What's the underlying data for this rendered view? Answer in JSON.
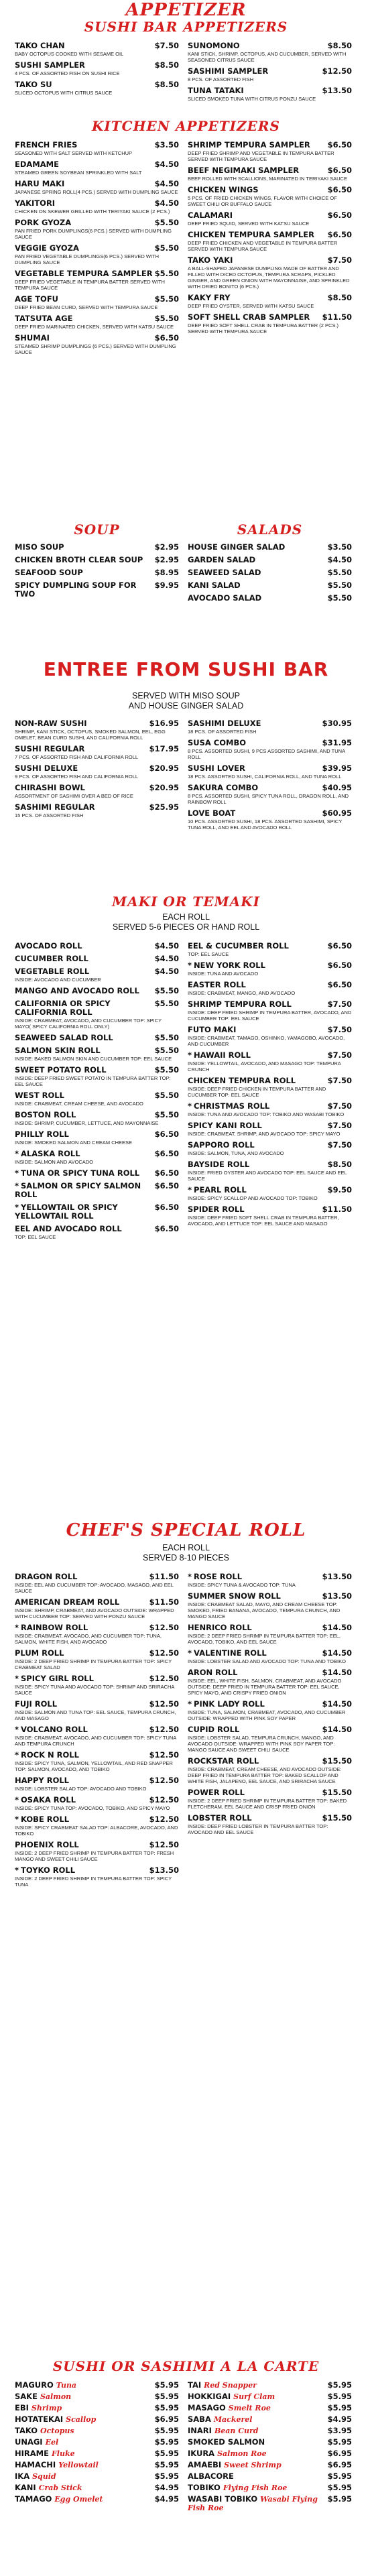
{
  "appetizer_header": "Appetizer",
  "sushi_bar_appetizers": {
    "title": "SUSHI BAR APPETIZERS",
    "left": [
      {
        "name": "TAKO CHAN",
        "price": "$7.50",
        "desc": "BABY OCTOPUS COOKED WITH SESAME OIL"
      },
      {
        "name": "SUSHI SAMPLER",
        "price": "$8.50",
        "desc": "4 PCS. OF ASSORTED FISH ON SUSHI RICE"
      },
      {
        "name": "TAKO SU",
        "price": "$8.50",
        "desc": "SLICED OCTOPUS WITH CITRUS SAUCE"
      }
    ],
    "right": [
      {
        "name": "SUNOMONO",
        "price": "$8.50",
        "desc": "KANI STICK, SHRIMP, OCTOPUS, AND CUCUMBER, SERVED WITH SEASONED CITRUS SAUCE"
      },
      {
        "name": "SASHIMI SAMPLER",
        "price": "$12.50",
        "desc": "8 PCS. OF ASSORTED FISH"
      },
      {
        "name": "TUNA TATAKI",
        "price": "$13.50",
        "desc": "SLICED SMOKED TUNA WITH CITRUS PONZU SAUCE"
      }
    ]
  },
  "kitchen_appetizers": {
    "title": "KITCHEN APPETIZERS",
    "left": [
      {
        "name": "FRENCH FRIES",
        "price": "$3.50",
        "desc": "SEASONED WITH SALT SERVED WITH KETCHUP"
      },
      {
        "name": "EDAMAME",
        "price": "$4.50",
        "desc": "STEAMED GREEN SOYBEAN SPRINKLED WITH SALT"
      },
      {
        "name": "HARU MAKI",
        "price": "$4.50",
        "desc": "JAPANESE SPRING ROLL(4 PCS.) SERVED WITH DUMPLING SAUCE"
      },
      {
        "name": "YAKITORI",
        "price": "$4.50",
        "desc": "CHICKEN ON SKEWER GRILLED WITH TERIYAKI SAUCE (2 PCS.)"
      },
      {
        "name": "PORK GYOZA",
        "price": "$5.50",
        "desc": "PAN FRIED PORK DUMPLINGS(6 PCS.) SERVED WITH DUMPLING SAUCE"
      },
      {
        "name": "VEGGIE GYOZA",
        "price": "$5.50",
        "desc": "PAN FRIED VEGETABLE DUMPLINGS(6 PCS.) SERVED WITH DUMPLING SAUCE"
      },
      {
        "name": "VEGETABLE TEMPURA SAMPLER",
        "price": "$5.50",
        "desc": "DEEP FRIED VEGETABLE IN TEMPURA BATTER SERVED WITH TEMPURA SAUCE"
      },
      {
        "name": "AGE TOFU",
        "price": "$5.50",
        "desc": "DEEP FRIED BEAN CURD, SERVED WITH TEMPURA SAUCE"
      },
      {
        "name": "TATSUTA AGE",
        "price": "$5.50",
        "desc": "DEEP FRIED MARINATED CHICKEN, SERVED WITH KATSU SAUCE"
      },
      {
        "name": "SHUMAI",
        "price": "$6.50",
        "desc": "STEAMED SHRIMP DUMPLINGS (6 PCS.) SERVED WITH DUMPLING SAUCE"
      }
    ],
    "right": [
      {
        "name": "SHRIMP TEMPURA SAMPLER",
        "price": "$6.50",
        "desc": "DEEP FRIED SHRIMP AND VEGETABLE IN TEMPURA BATTER SERVED WITH TEMPURA SAUCE"
      },
      {
        "name": "BEEF NEGIMAKI SAMPLER",
        "price": "$6.50",
        "desc": "BEEF ROLLED WITH SCALLIONS, MARINATED IN TERIYAKI SAUCE"
      },
      {
        "name": "CHICKEN WINGS",
        "price": "$6.50",
        "desc": "5 PCS. OF FRIED CHICKEN WINGS, FLAVOR WITH CHOICE OF SWEET CHILI OR BUFFALO SAUCE"
      },
      {
        "name": "CALAMARI",
        "price": "$6.50",
        "desc": "DEEP FRIED SQUID, SERVED WITH KATSU SAUCE"
      },
      {
        "name": "CHICKEN TEMPURA SAMPLER",
        "price": "$6.50",
        "desc": "DEEP FRIED CHICKEN AND VEGETABLE IN TEMPURA BATTER SERVED WITH TEMPURA SAUCE"
      },
      {
        "name": "TAKO YAKI",
        "price": "$7.50",
        "desc": "A BALL-SHAPED JAPANESE DUMPLING MADE OF BATTER AND FILLED WITH DICED OCTOPUS, TEMPURA SCRAPS, PICKLED GINGER, AND GREEN ONION WITH MAYONNAISE, AND SPRINKLED WITH DRIED BONITO (6 PCS.)"
      },
      {
        "name": "KAKY FRY",
        "price": "$8.50",
        "desc": "DEEP FRIED OYSTER, SERVED WITH KATSU SAUCE"
      },
      {
        "name": "SOFT SHELL CRAB SAMPLER",
        "price": "$11.50",
        "desc": "DEEP FRIED SOFT SHELL CRAB IN TEMPURA BATTER (2 PCS.) SERVED WITH TEMPURA SAUCE"
      }
    ]
  },
  "soup": {
    "title": "Soup",
    "items": [
      {
        "name": "MISO SOUP",
        "price": "$2.95"
      },
      {
        "name": "CHICKEN BROTH CLEAR SOUP",
        "price": "$2.95"
      },
      {
        "name": "SEAFOOD SOUP",
        "price": "$8.95"
      },
      {
        "name": "SPICY DUMPLING SOUP FOR TWO",
        "price": "$9.95"
      }
    ]
  },
  "salads": {
    "title": "Salads",
    "items": [
      {
        "name": "HOUSE GINGER SALAD",
        "price": "$3.50"
      },
      {
        "name": "GARDEN SALAD",
        "price": "$4.50"
      },
      {
        "name": "SEAWEED SALAD",
        "price": "$5.50"
      },
      {
        "name": "KANI SALAD",
        "price": "$5.50"
      },
      {
        "name": "AVOCADO SALAD",
        "price": "$5.50"
      }
    ]
  },
  "entree": {
    "title": "ENTREE FROM SUSHI BAR",
    "note1": "SERVED WITH MISO SOUP",
    "note2": "AND HOUSE GINGER SALAD",
    "left": [
      {
        "name": "NON-RAW SUSHI",
        "price": "$16.95",
        "desc": "SHRIMP, KANI STICK, OCTOPUS, SMOKED SALMON, EEL, EGG OMELET, BEAN CURD SUSHI, AND CALIFORNIA ROLL"
      },
      {
        "name": "SUSHI REGULAR",
        "price": "$17.95",
        "desc": "7 PCS. OF ASSORTED FISH AND CALIFORNIA ROLL"
      },
      {
        "name": "SUSHI DELUXE",
        "price": "$20.95",
        "desc": "9 PCS. OF ASSORTED FISH AND CALIFORNIA ROLL"
      },
      {
        "name": "CHIRASHI BOWL",
        "price": "$20.95",
        "desc": "ASSORTMENT OF SASHIMI OVER A BED OF RICE"
      },
      {
        "name": "SASHIMI REGULAR",
        "price": "$25.95",
        "desc": "15 PCS. OF ASSORTED FISH"
      }
    ],
    "right": [
      {
        "name": "SASHIMI DELUXE",
        "price": "$30.95",
        "desc": "18 PCS. OF ASSORTED FISH"
      },
      {
        "name": "SUSA COMBO",
        "price": "$31.95",
        "desc": "8 PCS. ASSORTED SUSHI, 9 PCS ASSORTED SASHIMI, AND TUNA ROLL"
      },
      {
        "name": "SUSHI LOVER",
        "price": "$39.95",
        "desc": "18 PCS. ASSORTED SUSHI, CALIFORNIA ROLL, AND TUNA ROLL"
      },
      {
        "name": "SAKURA COMBO",
        "price": "$40.95",
        "desc": "8 PCS. ASSORTED SUSHI, SPICY TUNA ROLL, DRAGON ROLL, AND RAINBOW ROLL"
      },
      {
        "name": "LOVE BOAT",
        "price": "$60.95",
        "desc": "10 PCS. ASSORTED SUSHI, 18 PCS. ASSORTED SASHIMI, SPICY TUNA ROLL, AND EEL AND AVOCADO ROLL"
      }
    ]
  },
  "maki": {
    "title": "Maki or Temaki",
    "note1": "EACH ROLL",
    "note2": "SERVED 5-6 PIECES OR HAND ROLL",
    "left": [
      {
        "star": false,
        "name": "AVOCADO ROLL",
        "price": "$4.50",
        "desc": ""
      },
      {
        "star": false,
        "name": "CUCUMBER ROLL",
        "price": "$4.50",
        "desc": ""
      },
      {
        "star": false,
        "name": "VEGETABLE ROLL",
        "price": "$4.50",
        "desc": "INSIDE: AVOCADO AND CUCUMBER"
      },
      {
        "star": false,
        "name": "MANGO AND AVOCADO ROLL",
        "price": "$5.50",
        "desc": ""
      },
      {
        "star": false,
        "name": "CALIFORNIA OR SPICY CALIFORNIA ROLL",
        "price": "$5.50",
        "desc": "INSIDE: CRABMEAT, AVOCADO, AND CUCUMBER TOP: SPICY MAYO( SPICY CALIFORNIA ROLL ONLY)"
      },
      {
        "star": false,
        "name": "SEAWEED SALAD ROLL",
        "price": "$5.50",
        "desc": ""
      },
      {
        "star": false,
        "name": "SALMON SKIN ROLL",
        "price": "$5.50",
        "desc": "INSIDE: BAKED SALMON SKIN AND CUCUMBER TOP: EEL SAUCE"
      },
      {
        "star": false,
        "name": "SWEET POTATO ROLL",
        "price": "$5.50",
        "desc": "INSIDE: DEEP FRIED SWEET POTATO IN TEMPURA BATTER TOP: EEL SAUCE"
      },
      {
        "star": false,
        "name": "WEST ROLL",
        "price": "$5.50",
        "desc": "INSIDE: CRABMEAT, CREAM CHEESE, AND AVOCADO"
      },
      {
        "star": false,
        "name": "BOSTON ROLL",
        "price": "$5.50",
        "desc": "INSIDE: SHRIMP, CUCUMBER, LETTUCE, AND MAYONNAISE"
      },
      {
        "star": false,
        "name": "PHILLY ROLL",
        "price": "$6.50",
        "desc": "INSIDE: SMOKED SALMON AND CREAM CHEESE"
      },
      {
        "star": true,
        "name": "ALASKA ROLL",
        "price": "$6.50",
        "desc": "INSIDE: SALMON AND AVOCADO"
      },
      {
        "star": true,
        "name": "TUNA OR SPICY TUNA ROLL",
        "price": "$6.50",
        "desc": ""
      },
      {
        "star": true,
        "name": "SALMON OR SPICY SALMON ROLL",
        "price": "$6.50",
        "desc": ""
      },
      {
        "star": true,
        "name": "YELLOWTAIL OR SPICY YELLOWTAIL ROLL",
        "price": "$6.50",
        "desc": ""
      },
      {
        "star": false,
        "name": "EEL AND AVOCADO ROLL",
        "price": "$6.50",
        "desc": "TOP: EEL SAUCE"
      }
    ],
    "right": [
      {
        "star": false,
        "name": "EEL & CUCUMBER ROLL",
        "price": "$6.50",
        "desc": "TOP: EEL SAUCE"
      },
      {
        "star": true,
        "name": "NEW YORK ROLL",
        "price": "$6.50",
        "desc": "INSIDE: TUNA AND AVOCADO"
      },
      {
        "star": false,
        "name": "EASTER ROLL",
        "price": "$6.50",
        "desc": "INSIDE: CRABMEAT, MANGO, AND AVOCADO"
      },
      {
        "star": false,
        "name": "SHRIMP TEMPURA ROLL",
        "price": "$7.50",
        "desc": "INSIDE: DEEP FRIED SHRIMP IN TEMPURA BATTER, AVOCADO, AND CUCUMBER TOP: EEL SAUCE"
      },
      {
        "star": false,
        "name": "FUTO MAKI",
        "price": "$7.50",
        "desc": "INSIDE: CRABMEAT, TAMAGO, OSHINKO, YAMAGOBO, AVOCADO, AND CUCUMBER"
      },
      {
        "star": true,
        "name": "HAWAII ROLL",
        "price": "$7.50",
        "desc": "INSIDE: YELLOWTAIL, AVOCADO, AND MASAGO TOP: TEMPURA CRUNCH"
      },
      {
        "star": false,
        "name": "CHICKEN TEMPURA ROLL",
        "price": "$7.50",
        "desc": "INSIDE: DEEP FRIED CHICKEN IN TEMPURA BATTER AND CUCUMBER TOP: EEL SAUCE"
      },
      {
        "star": true,
        "name": "CHRISTMAS ROLL",
        "price": "$7.50",
        "desc": "INSIDE: TUNA AND AVOCADO TOP: TOBIKO AND WASABI TOBIKO"
      },
      {
        "star": false,
        "name": "SPICY KANI ROLL",
        "price": "$7.50",
        "desc": "INSIDE: CRABMEAT, SHRIMP, AND AVOCADO TOP: SPICY MAYO"
      },
      {
        "star": false,
        "name": "SAPPORO ROLL",
        "price": "$7.50",
        "desc": "INSIDE: SALMON, TUNA, AND AVOCADO"
      },
      {
        "star": false,
        "name": "BAYSIDE ROLL",
        "price": "$8.50",
        "desc": "INSIDE: FRIED OYSTER AND AVOCADO TOP: EEL SAUCE AND EEL SAUCE"
      },
      {
        "star": true,
        "name": "PEARL ROLL",
        "price": "$9.50",
        "desc": "INSIDE: SPICY SCALLOP AND AVOCADO TOP: TOBIKO"
      },
      {
        "star": false,
        "name": "SPIDER ROLL",
        "price": "$11.50",
        "desc": "INSIDE: DEEP FRIED SOFT SHELL CRAB IN TEMPURA BATTER, AVOCADO, AND LETTUCE TOP: EEL SAUCE AND MASAGO"
      }
    ]
  },
  "chef": {
    "title": "Chef's Special Roll",
    "note1": "EACH ROLL",
    "note2": "SERVED 8-10 PIECES",
    "left": [
      {
        "star": false,
        "name": "DRAGON ROLL",
        "price": "$11.50",
        "desc": "INSIDE: EEL AND CUCUMBER TOP: AVOCADO, MASAGO, AND EEL SAUCE"
      },
      {
        "star": false,
        "name": "AMERICAN DREAM ROLL",
        "price": "$11.50",
        "desc": "INSIDE: SHRIMP, CRABMEAT, AND AVOCADO OUTSIDE: WRAPPED WITH CUCUMBER TOP: SERVED WITH PONZU SAUCE"
      },
      {
        "star": true,
        "name": "RAINBOW ROLL",
        "price": "$12.50",
        "desc": "INSIDE: CRABMEAT, AVOCADO, AND CUCUMBER TOP: TUNA, SALMON, WHITE FISH, AND AVOCADO"
      },
      {
        "star": false,
        "name": "PLUM ROLL",
        "price": "$12.50",
        "desc": "INSIDE: 2 DEEP FRIED SHRIMP IN TEMPURA BATTER TOP: SPICY CRABMEAT SALAD"
      },
      {
        "star": true,
        "name": "SPICY GIRL ROLL",
        "price": "$12.50",
        "desc": "INSIDE: SPICY TUNA AND AVOCADO TOP: SHRIMP AND SRIRACHA SAUCE"
      },
      {
        "star": false,
        "name": "FUJI ROLL",
        "price": "$12.50",
        "desc": "INSIDE: SALMON AND TUNA TOP: EEL SAUCE, TEMPURA CRUNCH, AND MASAGO"
      },
      {
        "star": true,
        "name": "VOLCANO ROLL",
        "price": "$12.50",
        "desc": "INSIDE: CRABMEAT, AVOCADO, AND CUCUMBER TOP: SPICY TUNA AND TEMPURA CRUNCH"
      },
      {
        "star": true,
        "name": "ROCK N ROLL",
        "price": "$12.50",
        "desc": "INSIDE: SPICY TUNA, SALMON, YELLOWTAIL, AND RED SNAPPER TOP: SALMON, AVOCADO, AND TOBIKO"
      },
      {
        "star": false,
        "name": "HAPPY ROLL",
        "price": "$12.50",
        "desc": "INSIDE: LOBSTER SALAD TOP: AVOCADO AND TOBIKO"
      },
      {
        "star": true,
        "name": "OSAKA ROLL",
        "price": "$12.50",
        "desc": "INSIDE: SPICY TUNA TOP: AVOCADO, TOBIKO, AND SPICY MAYO"
      },
      {
        "star": true,
        "name": "KOBE ROLL",
        "price": "$12.50",
        "desc": "INSIDE: SPICY CRABMEAT SALAD TOP: ALBACORE, AVOCADO, AND TOBIKO"
      },
      {
        "star": false,
        "name": "PHOENIX ROLL",
        "price": "$12.50",
        "desc": "INSIDE: 2 DEEP FRIED SHRIMP IN TEMPURA BATTER TOP: FRESH MANGO AND SWEET CHILI SAUCE"
      },
      {
        "star": true,
        "name": "TOYKO ROLL",
        "price": "$13.50",
        "desc": "INSIDE: 2 DEEP FRIED SHRIMP IN TEMPURA BATTER TOP: SPICY TUNA"
      }
    ],
    "right": [
      {
        "star": true,
        "name": "ROSE ROLL",
        "price": "$13.50",
        "desc": "INSIDE: SPICY TUNA & AVOCADO TOP: TUNA"
      },
      {
        "star": false,
        "name": "SUMMER SNOW ROLL",
        "price": "$13.50",
        "desc": "INSIDE: CRABMEAT SALAD, MAYO, AND CREAM CHEESE TOP: SMOKED, FRIED BANANA, AVOCADO, TEMPURA CRUNCH, AND MANGO SAUCE"
      },
      {
        "star": false,
        "name": "HENRICO ROLL",
        "price": "$14.50",
        "desc": "INSIDE: 2 DEEP FRIED SHRIMP IN TEMPURA BATTER TOP: EEL, AVOCADO, TOBIKO, AND EEL SAUCE"
      },
      {
        "star": true,
        "name": "VALENTINE ROLL",
        "price": "$14.50",
        "desc": "INSIDE: LOBSTER SALAD AND AVOCADO TOP: TUNA AND TOBIKO"
      },
      {
        "star": false,
        "name": "ARON ROLL",
        "price": "$14.50",
        "desc": "INSIDE: EEL, WHITE FISH, SALMON, CRABMEAT, AND AVOCADO OUTSIDE: DEEP FRIED IN TEMPURA BATTER TOP: EEL SAUCE, SPICY MAYO, AND CRISPY FRIED ONION"
      },
      {
        "star": true,
        "name": "PINK LADY ROLL",
        "price": "$14.50",
        "desc": "INSIDE: TUNA, SALMON, CRABMEAT, AVOCADO, AND CUCUMBER OUTSIDE: WRAPPED WITH PINK SOY PAPER"
      },
      {
        "star": false,
        "name": "CUPID ROLL",
        "price": "$14.50",
        "desc": "INSIDE: LOBSTER SALAD, TEMPURA CRUNCH, MANGO, AND AVOCADO OUTSIDE: WRAPPED WITH PINK SOY PAPER TOP: MANGO SAUCE AND SWEET CHILI SAUCE"
      },
      {
        "star": false,
        "name": "ROCKSTAR ROLL",
        "price": "$15.50",
        "desc": "INSIDE: CRABMEAT, CREAM CHEESE, AND AVOCADO OUTSIDE: DEEP FRIED IN TEMPURA BATTER TOP: BAKED SCALLOP AND WHITE FISH, JALAPENO, EEL SAUCE, AND SRIRACHA SAUCE"
      },
      {
        "star": false,
        "name": "POWER ROLL",
        "price": "$15.50",
        "desc": "INSIDE: 2 DEEP FRIED SHRIMP IN TEMPURA BATTER TOP: BAKED FLETCHERAM, EEL SAUCE AND CRISP FRIED ONION"
      },
      {
        "star": false,
        "name": "LOBSTER ROLL",
        "price": "$15.50",
        "desc": "INSIDE: DEEP FRIED LOBSTER IN TEMPURA BATTER TOP: AVOCADO AND EEL SAUCE"
      }
    ]
  },
  "alacarte": {
    "title": "Sushi or Sashimi a la Carte",
    "left": [
      {
        "name": "MAGURO",
        "jp": "Tuna",
        "price": "$5.95"
      },
      {
        "name": "SAKE",
        "jp": "Salmon",
        "price": "$5.95"
      },
      {
        "name": "EBI",
        "jp": "Shrimp",
        "price": "$5.95"
      },
      {
        "name": "HOTATEKAI",
        "jp": "Scallop",
        "price": "$6.95"
      },
      {
        "name": "TAKO",
        "jp": "Octopus",
        "price": "$5.95"
      },
      {
        "name": "UNAGI",
        "jp": "Eel",
        "price": "$5.95"
      },
      {
        "name": "HIRAME",
        "jp": "Fluke",
        "price": "$5.95"
      },
      {
        "name": "HAMACHI",
        "jp": "Yellowtail",
        "price": "$5.95"
      },
      {
        "name": "IKA",
        "jp": "Squid",
        "price": "$5.95"
      },
      {
        "name": "KANI",
        "jp": "Crab Stick",
        "price": "$4.95"
      },
      {
        "name": "TAMAGO",
        "jp": "Egg Omelet",
        "price": "$4.95"
      }
    ],
    "right": [
      {
        "name": "TAI",
        "jp": "Red Snapper",
        "price": "$5.95"
      },
      {
        "name": "HOKKIGAI",
        "jp": "Surf Clam",
        "price": "$5.95"
      },
      {
        "name": "MASAGO",
        "jp": "Smelt Roe",
        "price": "$5.95"
      },
      {
        "name": "SABA",
        "jp": "Mackerel",
        "price": "$4.95"
      },
      {
        "name": "INARI",
        "jp": "Bean Curd",
        "price": "$3.95"
      },
      {
        "name": "SMOKED SALMON",
        "jp": "",
        "price": "$5.95"
      },
      {
        "name": "IKURA",
        "jp": "Salmon Roe",
        "price": "$6.95"
      },
      {
        "name": "AMAEBI",
        "jp": "Sweet Shrimp",
        "price": "$6.95"
      },
      {
        "name": "ALBACORE",
        "jp": "",
        "price": "$5.95"
      },
      {
        "name": "TOBIKO",
        "jp": "Flying Fish Roe",
        "price": "$5.95"
      },
      {
        "name": "WASABI TOBIKO",
        "jp": "Wasabi Flying Fish Roe",
        "price": "$5.95"
      }
    ]
  }
}
